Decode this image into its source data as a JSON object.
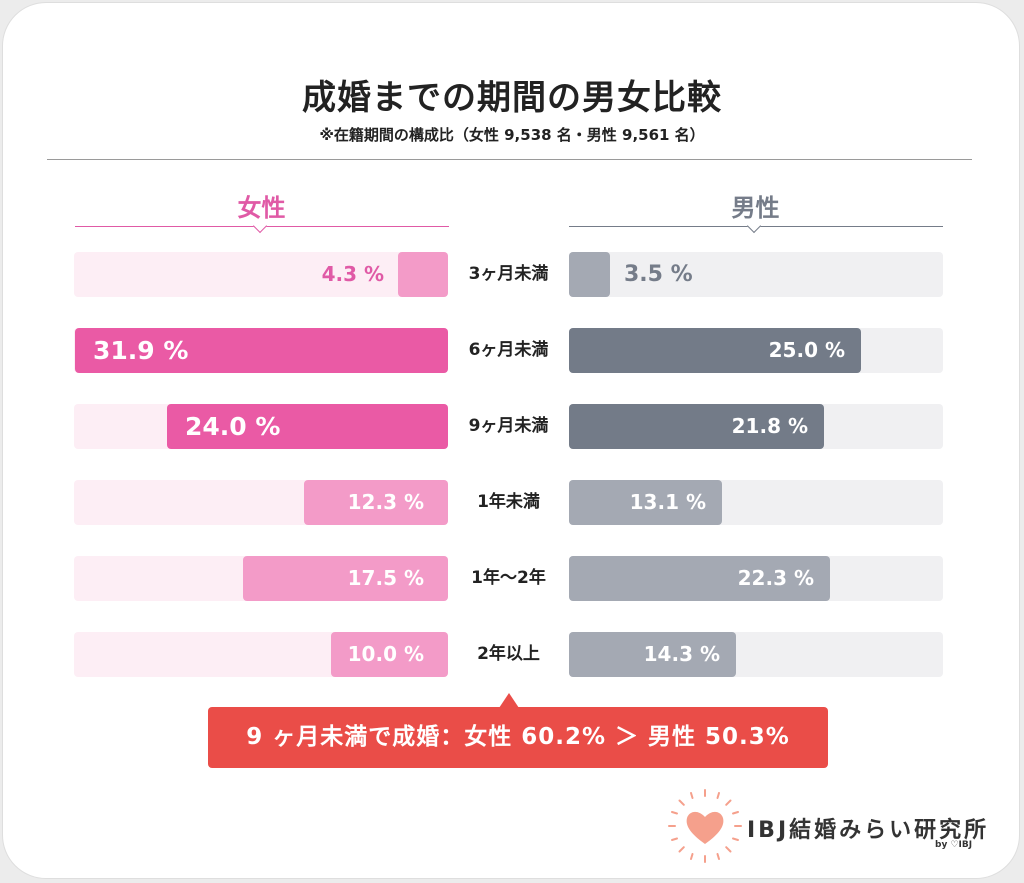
{
  "chart_data": {
    "type": "bar",
    "title": "成婚までの期間の男女比較",
    "subtitle": "※在籍期間の構成比（女性 9,538 名・男性 9,561 名）",
    "categories": [
      "3ヶ月未満",
      "6ヶ月未満",
      "9ヶ月未満",
      "1年未満",
      "1年〜2年",
      "2年以上"
    ],
    "series": [
      {
        "name": "女性",
        "values": [
          4.3,
          31.9,
          24.0,
          12.3,
          17.5,
          10.0
        ],
        "labels": [
          "4.3 %",
          "31.9 %",
          "24.0 %",
          "12.3 %",
          "17.5 %",
          "10.0 %"
        ]
      },
      {
        "name": "男性",
        "values": [
          3.5,
          25.0,
          21.8,
          13.1,
          22.3,
          14.3
        ],
        "labels": [
          "3.5 %",
          "25.0 %",
          "21.8 %",
          "13.1 %",
          "22.3 %",
          "14.3 %"
        ]
      }
    ],
    "xlim": [
      0,
      32
    ],
    "highlight": [
      1,
      2
    ],
    "colors": {
      "female_strong": "#ea5aa5",
      "female_light": "#f39bc8",
      "female_track": "#fdeef5",
      "female_text": "#e05aa6",
      "male_strong": "#737b88",
      "male_light": "#a4a9b3",
      "male_track": "#f0f0f2",
      "male_text": "#757c89"
    }
  },
  "callout": "9 ヶ月未満で成婚：女性 60.2% ＞ 男性 50.3%",
  "logo": {
    "name": "IBJ結婚みらい研究所",
    "byline": "by ♡IBJ",
    "icon": "heart-sunburst-icon",
    "heart_color": "#f5a08c"
  }
}
